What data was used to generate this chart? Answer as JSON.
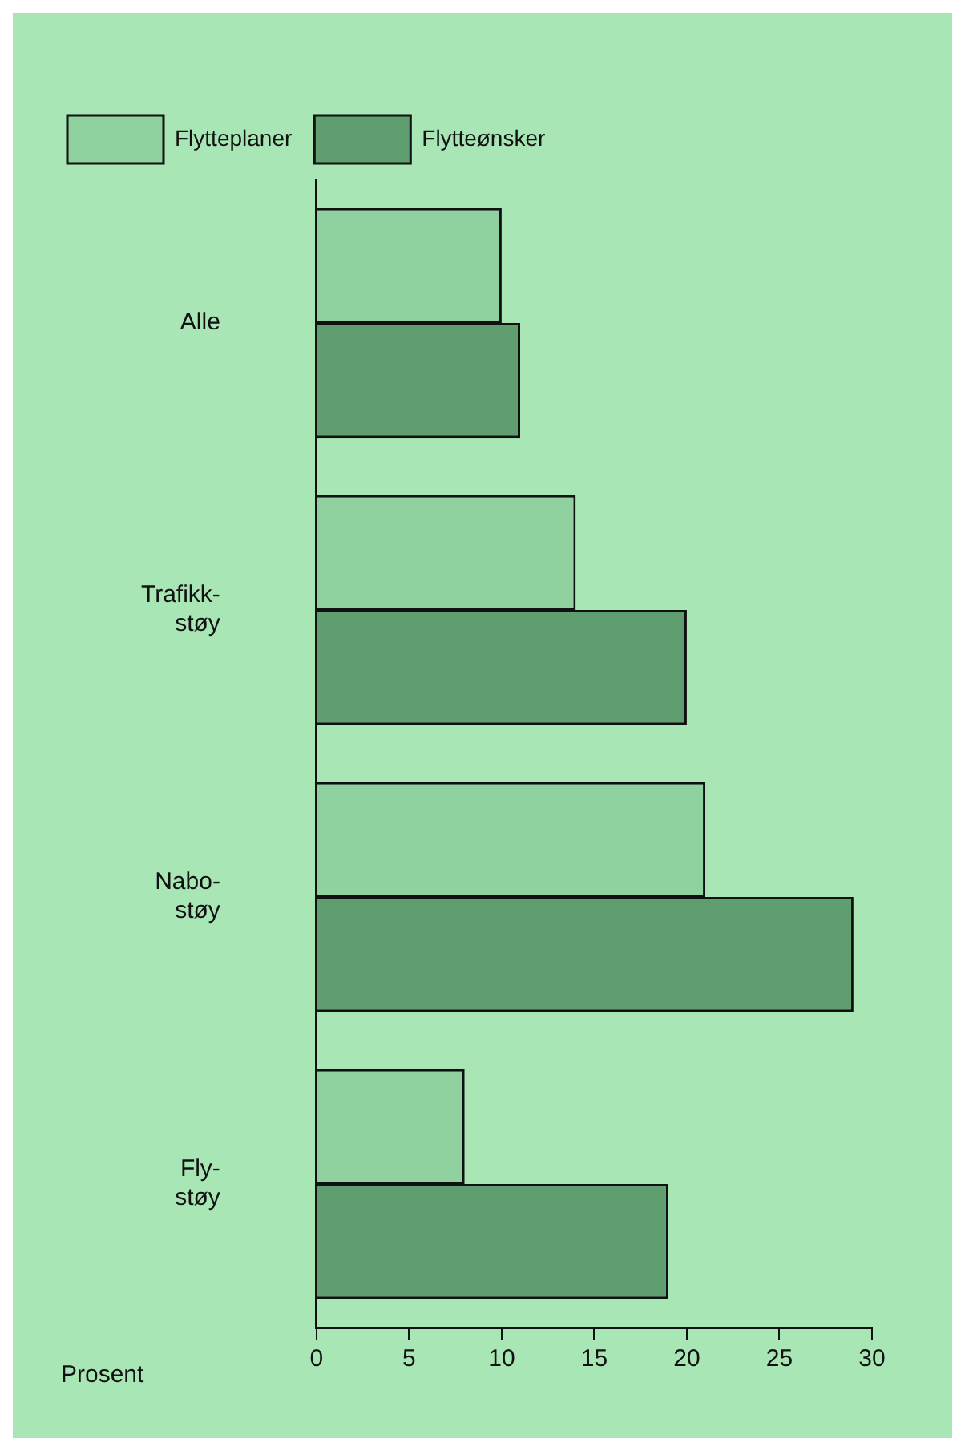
{
  "chart_data": {
    "type": "bar",
    "orientation": "horizontal",
    "xlabel": "Prosent",
    "categories": [
      "Alle",
      "Trafikk-støy",
      "Nabo-støy",
      "Fly-støy"
    ],
    "series": [
      {
        "name": "Flytteplaner",
        "color": "#8fd19f",
        "values": [
          10,
          14,
          21,
          8
        ]
      },
      {
        "name": "Flytteønsker",
        "color": "#5f9e6e",
        "values": [
          11,
          20,
          29,
          19
        ]
      }
    ],
    "xlim": [
      0,
      30
    ],
    "xticks": [
      0,
      5,
      10,
      15,
      20,
      25,
      30
    ],
    "grid": false,
    "legend": "top left"
  }
}
